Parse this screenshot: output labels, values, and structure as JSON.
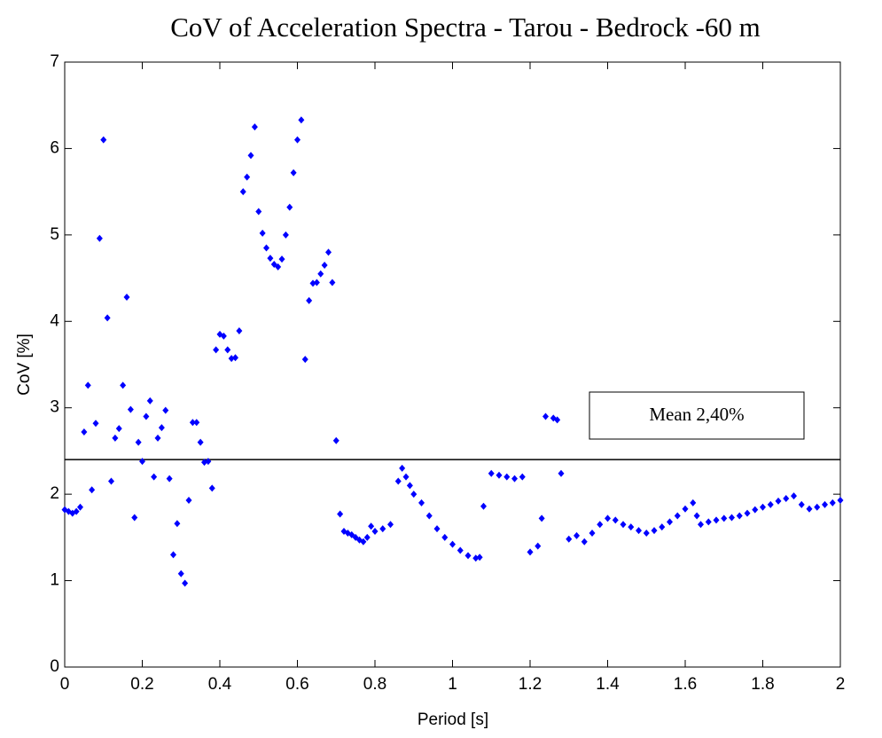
{
  "chart_data": {
    "type": "scatter",
    "title": "CoV of Acceleration Spectra - Tarou - Bedrock -60 m",
    "x_label": "Period [s]",
    "y_label": "CoV [%]",
    "annotation": "Mean 2,40%",
    "mean": 2.4,
    "xlim": [
      0,
      2
    ],
    "ylim": [
      0,
      7
    ],
    "xticks": [
      0,
      0.2,
      0.4,
      0.6,
      0.8,
      1,
      1.2,
      1.4,
      1.6,
      1.8,
      2
    ],
    "yticks": [
      0,
      1,
      2,
      3,
      4,
      5,
      6,
      7
    ],
    "grid": false,
    "color": "#0000ff",
    "x": [
      0,
      0.01,
      0.02,
      0.03,
      0.04,
      0.05,
      0.06,
      0.07,
      0.08,
      0.09,
      0.1,
      0.11,
      0.12,
      0.13,
      0.14,
      0.15,
      0.16,
      0.17,
      0.18,
      0.19,
      0.2,
      0.21,
      0.22,
      0.23,
      0.24,
      0.25,
      0.26,
      0.27,
      0.28,
      0.29,
      0.3,
      0.31,
      0.32,
      0.33,
      0.34,
      0.35,
      0.36,
      0.37,
      0.38,
      0.39,
      0.4,
      0.41,
      0.42,
      0.43,
      0.44,
      0.45,
      0.46,
      0.47,
      0.48,
      0.49,
      0.5,
      0.51,
      0.52,
      0.53,
      0.54,
      0.55,
      0.56,
      0.57,
      0.58,
      0.59,
      0.6,
      0.61,
      0.62,
      0.63,
      0.64,
      0.65,
      0.66,
      0.67,
      0.68,
      0.69,
      0.7,
      0.71,
      0.72,
      0.73,
      0.74,
      0.75,
      0.76,
      0.77,
      0.78,
      0.79,
      0.8,
      0.82,
      0.84,
      0.86,
      0.87,
      0.88,
      0.89,
      0.9,
      0.92,
      0.94,
      0.96,
      0.98,
      1.0,
      1.02,
      1.04,
      1.06,
      1.07,
      1.08,
      1.1,
      1.12,
      1.14,
      1.16,
      1.18,
      1.2,
      1.22,
      1.23,
      1.24,
      1.26,
      1.27,
      1.28,
      1.3,
      1.32,
      1.34,
      1.36,
      1.38,
      1.4,
      1.42,
      1.44,
      1.46,
      1.48,
      1.5,
      1.52,
      1.54,
      1.56,
      1.58,
      1.6,
      1.62,
      1.63,
      1.64,
      1.66,
      1.68,
      1.7,
      1.72,
      1.74,
      1.76,
      1.78,
      1.8,
      1.82,
      1.84,
      1.86,
      1.88,
      1.9,
      1.92,
      1.94,
      1.96,
      1.98,
      2.0
    ],
    "values": [
      1.82,
      1.8,
      1.78,
      1.8,
      1.85,
      2.72,
      3.26,
      2.05,
      2.82,
      4.96,
      6.1,
      4.04,
      2.15,
      2.65,
      2.76,
      3.26,
      4.28,
      2.98,
      1.73,
      2.6,
      2.38,
      2.9,
      3.08,
      2.2,
      2.65,
      2.77,
      2.97,
      2.18,
      1.3,
      1.66,
      1.08,
      0.97,
      1.93,
      2.83,
      2.83,
      2.6,
      2.37,
      2.38,
      2.07,
      3.67,
      3.85,
      3.83,
      3.67,
      3.57,
      3.58,
      3.89,
      5.5,
      5.67,
      5.92,
      6.25,
      5.27,
      5.02,
      4.85,
      4.73,
      4.66,
      4.63,
      4.72,
      5.0,
      5.32,
      5.72,
      6.1,
      6.33,
      3.56,
      4.24,
      4.44,
      4.45,
      4.55,
      4.65,
      4.8,
      4.45,
      2.62,
      1.77,
      1.57,
      1.55,
      1.53,
      1.5,
      1.47,
      1.45,
      1.5,
      1.63,
      1.57,
      1.6,
      1.65,
      2.15,
      2.3,
      2.2,
      2.1,
      2.0,
      1.9,
      1.75,
      1.6,
      1.5,
      1.42,
      1.35,
      1.29,
      1.26,
      1.27,
      1.86,
      2.24,
      2.22,
      2.2,
      2.18,
      2.2,
      1.33,
      1.4,
      1.72,
      2.9,
      2.88,
      2.86,
      2.24,
      1.48,
      1.52,
      1.45,
      1.55,
      1.65,
      1.72,
      1.7,
      1.65,
      1.62,
      1.58,
      1.55,
      1.58,
      1.62,
      1.68,
      1.75,
      1.83,
      1.9,
      1.75,
      1.65,
      1.68,
      1.7,
      1.72,
      1.73,
      1.75,
      1.78,
      1.82,
      1.85,
      1.88,
      1.92,
      1.95,
      1.98,
      1.88,
      1.83,
      1.85,
      1.88,
      1.9,
      1.93
    ]
  }
}
